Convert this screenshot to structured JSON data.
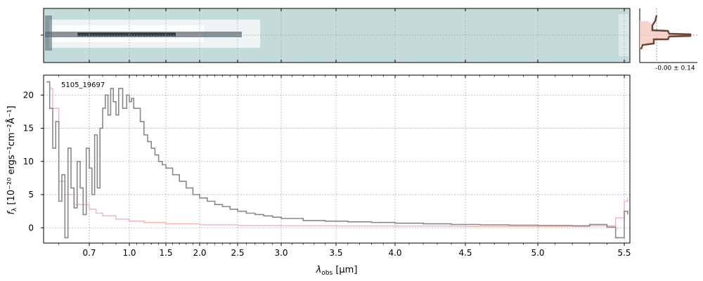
{
  "chart_data": [
    {
      "panel": "spectrum-2d",
      "type": "heatmap",
      "description_visible": "2D dispersed spectrum image",
      "colors": {
        "background": "#c4dbd9",
        "trace": "#1a2a3a",
        "bright": "#ffffff"
      }
    },
    {
      "panel": "profile",
      "type": "line",
      "annotation": "-0.00 ± 0.14",
      "colors": {
        "profile": "#6b4535",
        "fill": "#f5c8c0"
      }
    },
    {
      "panel": "spectrum-1d",
      "type": "line",
      "label": "5105_19697",
      "xlabel": "λ",
      "xlabel_sub": "obs",
      "xlabel_unit": " [μm]",
      "ylabel": "f",
      "ylabel_sub": "λ",
      "ylabel_unit": " [10⁻²⁰ ergs⁻¹cm⁻²Å⁻¹]",
      "xscale": "spectral-index (compressed at blue end)",
      "xticks": [
        0.7,
        1.0,
        1.5,
        2.0,
        2.5,
        3.0,
        3.5,
        4.0,
        4.5,
        5.0,
        5.5
      ],
      "xtick_labels": [
        "0.7",
        "1.0",
        "1.5",
        "2.0",
        "2.5",
        "3.0",
        "3.5",
        "4.0",
        "4.5",
        "5.0",
        "5.5"
      ],
      "yticks": [
        0,
        5,
        10,
        15,
        20
      ],
      "ytick_labels": [
        "0",
        "5",
        "10",
        "15",
        "20"
      ],
      "xlim": [
        0.55,
        5.55
      ],
      "ylim": [
        -2.3,
        23
      ],
      "grid": true,
      "series": [
        {
          "color": "#888888",
          "x": [
            0.56,
            0.57,
            0.58,
            0.59,
            0.6,
            0.61,
            0.62,
            0.63,
            0.64,
            0.65,
            0.66,
            0.67,
            0.68,
            0.69,
            0.7,
            0.72,
            0.74,
            0.76,
            0.78,
            0.8,
            0.82,
            0.84,
            0.86,
            0.88,
            0.9,
            0.92,
            0.95,
            0.98,
            1.0,
            1.03,
            1.06,
            1.1,
            1.15,
            1.2,
            1.25,
            1.3,
            1.35,
            1.4,
            1.45,
            1.5,
            1.6,
            1.7,
            1.8,
            1.9,
            2.0,
            2.1,
            2.2,
            2.3,
            2.4,
            2.5,
            2.6,
            2.7,
            2.8,
            2.9,
            3.0,
            3.2,
            3.4,
            3.6,
            3.8,
            4.0,
            4.2,
            4.4,
            4.6,
            4.8,
            5.0,
            5.2,
            5.3,
            5.4,
            5.45,
            5.5,
            5.53
          ],
          "values": [
            22,
            18,
            12,
            16,
            4,
            8,
            -1.5,
            12,
            6,
            3,
            10,
            6,
            2,
            12,
            9,
            5,
            14,
            6,
            15,
            18,
            20,
            17,
            21,
            19,
            17,
            21,
            18,
            20,
            19,
            19.5,
            18,
            18,
            16,
            14,
            13,
            12,
            11,
            10,
            9.5,
            9,
            8,
            7,
            6,
            5,
            4.5,
            4,
            3.5,
            3.2,
            2.8,
            2.5,
            2.2,
            2.0,
            1.8,
            1.6,
            1.4,
            1.1,
            1.0,
            0.9,
            0.8,
            0.7,
            0.6,
            0.5,
            0.45,
            0.4,
            0.35,
            0.3,
            0.5,
            0.1,
            -1.5,
            2.5,
            2.0
          ]
        },
        {
          "color": "#f4b8b8",
          "x": [
            0.56,
            0.57,
            0.58,
            0.6,
            0.62,
            0.65,
            0.7,
            0.75,
            0.8,
            0.9,
            1.0,
            1.2,
            1.5,
            2.0,
            2.5,
            3.0,
            3.5,
            4.0,
            4.5,
            5.0,
            5.3,
            5.45,
            5.5,
            5.53
          ],
          "values": [
            22,
            21,
            18,
            7,
            5,
            3.5,
            2.8,
            2.2,
            1.8,
            1.3,
            1.0,
            0.8,
            0.6,
            0.45,
            0.35,
            0.3,
            0.28,
            0.25,
            0.22,
            0.2,
            0.3,
            1.5,
            4.0,
            4.5
          ]
        }
      ]
    }
  ]
}
